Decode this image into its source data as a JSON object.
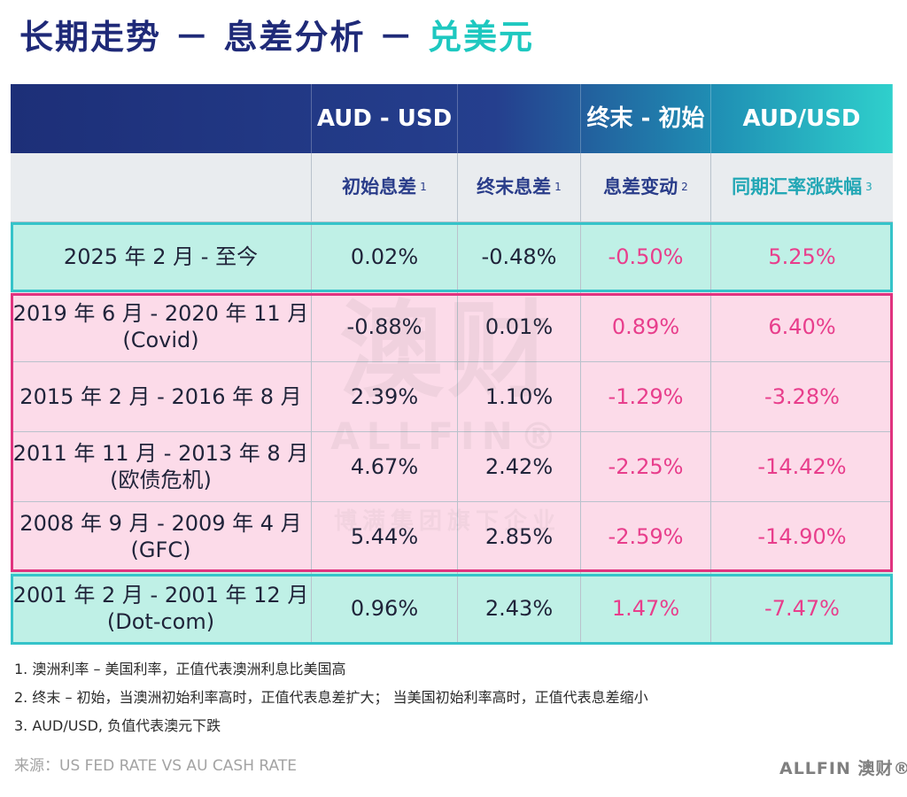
{
  "title": {
    "main": "长期走势 － 息差分析 －",
    "sub": "兑美元"
  },
  "header1": [
    "",
    "AUD - USD",
    "",
    "终末 - 初始",
    "AUD/USD"
  ],
  "header2": [
    {
      "label": "",
      "sup": ""
    },
    {
      "label": "初始息差",
      "sup": "1"
    },
    {
      "label": "终末息差",
      "sup": "1"
    },
    {
      "label": "息差变动",
      "sup": "2"
    },
    {
      "label": "同期汇率涨跌幅",
      "sup": "3"
    }
  ],
  "rows": [
    {
      "period": "2025 年 2 月 - 至今",
      "tag": "",
      "initial": "0.02%",
      "final": "-0.48%",
      "change": "-0.50%",
      "fx": "5.25%"
    },
    {
      "period": "2019 年 6 月 - 2020 年 11 月",
      "tag": "(Covid)",
      "initial": "-0.88%",
      "final": "0.01%",
      "change": "0.89%",
      "fx": "6.40%"
    },
    {
      "period": "2015 年 2 月 - 2016 年 8 月",
      "tag": "",
      "initial": "2.39%",
      "final": "1.10%",
      "change": "-1.29%",
      "fx": "-3.28%"
    },
    {
      "period": "2011 年 11 月 - 2013 年 8 月",
      "tag": "(欧债危机)",
      "initial": "4.67%",
      "final": "2.42%",
      "change": "-2.25%",
      "fx": "-14.42%"
    },
    {
      "period": "2008 年 9 月 - 2009 年 4 月",
      "tag": "(GFC)",
      "initial": "5.44%",
      "final": "2.85%",
      "change": "-2.59%",
      "fx": "-14.90%"
    },
    {
      "period": "2001 年 2 月 - 2001 年 12 月",
      "tag": "(Dot-com)",
      "initial": "0.96%",
      "final": "2.43%",
      "change": "1.47%",
      "fx": "-7.47%"
    }
  ],
  "watermark": {
    "big": "澳财",
    "en": "ALLFIN®",
    "cn": "博满集团旗下企业"
  },
  "notes": [
    "1. 澳洲利率 – 美国利率，正值代表澳洲利息比美国高",
    "2. 终末 – 初始，当澳洲初始利率高时，正值代表息差扩大； 当美国初始利率高时，正值代表息差缩小",
    "3. AUD/USD, 负值代表澳元下跌"
  ],
  "source": "来源：US FED RATE VS AU CASH RATE",
  "logo": "ALLFIN 澳财®",
  "colors": {
    "navy": "#1f2a78",
    "teal": "#35c3c9",
    "pink": "#e0337f",
    "value_accent": "#e83e8c",
    "row_teal": "#bff0e6",
    "row_pink": "#fcdbe9"
  }
}
